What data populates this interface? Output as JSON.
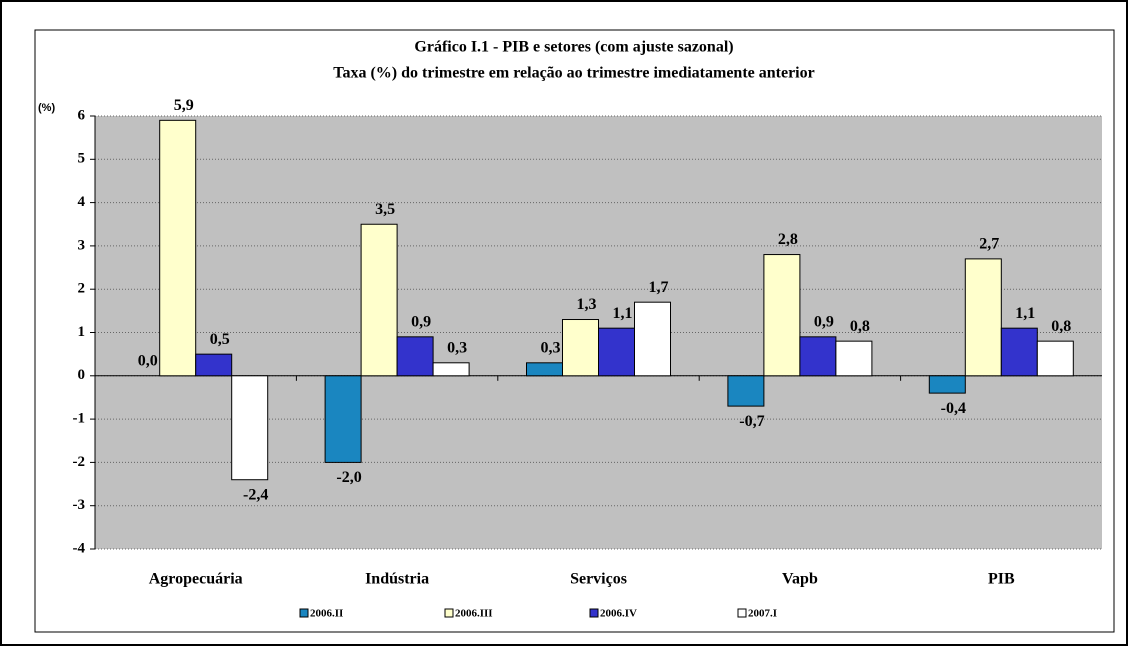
{
  "chart_data": {
    "type": "bar",
    "title": "Gráfico I.1 - PIB  e setores (com ajuste sazonal)",
    "subtitle": "Taxa (%) do trimestre em relação ao trimestre imediatamente anterior",
    "y_label": "(%)",
    "categories": [
      "Agropecuária",
      "Indústria",
      "Serviços",
      "Vapb",
      "PIB"
    ],
    "series": [
      {
        "name": "2006.II",
        "color": "#1a86c0",
        "values": [
          0.0,
          -2.0,
          0.3,
          -0.7,
          -0.4
        ],
        "value_labels": [
          "0,0",
          "-2,0",
          "0,3",
          "-0,7",
          "-0,4"
        ]
      },
      {
        "name": "2006.III",
        "color": "#ffffcc",
        "values": [
          5.9,
          3.5,
          1.3,
          2.8,
          2.7
        ],
        "value_labels": [
          "5,9",
          "3,5",
          "1,3",
          "2,8",
          "2,7"
        ]
      },
      {
        "name": "2006.IV",
        "color": "#3333cc",
        "values": [
          0.5,
          0.9,
          1.1,
          0.9,
          1.1
        ],
        "value_labels": [
          "0,5",
          "0,9",
          "1,1",
          "0,9",
          "1,1"
        ]
      },
      {
        "name": "2007.I",
        "color": "#ffffff",
        "values": [
          -2.4,
          0.3,
          1.7,
          0.8,
          0.8
        ],
        "value_labels": [
          "-2,4",
          "0,3",
          "1,7",
          "0,8",
          "0,8"
        ]
      }
    ],
    "ylim": [
      -4,
      6
    ],
    "yticks": [
      -4,
      -3,
      -2,
      -1,
      0,
      1,
      2,
      3,
      4,
      5,
      6
    ],
    "grid": true,
    "legend": "bottom"
  }
}
